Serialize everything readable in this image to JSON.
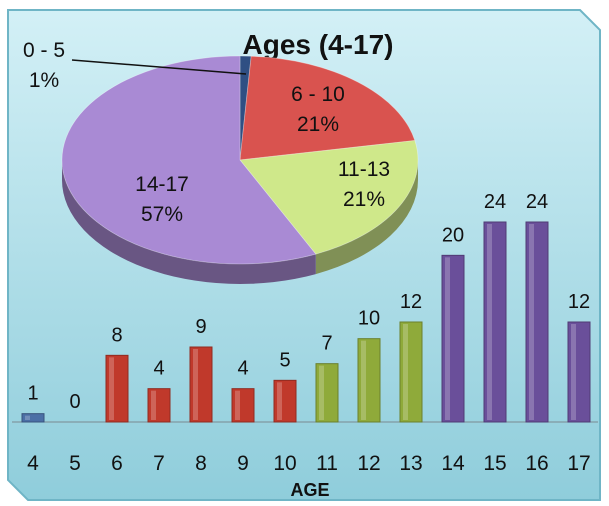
{
  "chart_data": [
    {
      "type": "pie",
      "title": "Ages (4-17)",
      "slices": [
        {
          "label": "0 - 5",
          "percent": "1%",
          "value": 1,
          "color": "#2f4f83"
        },
        {
          "label": "6 - 10",
          "percent": "21%",
          "value": 21,
          "color": "#d9534f"
        },
        {
          "label": "11-13",
          "percent": "21%",
          "value": 21,
          "color": "#cfe88a"
        },
        {
          "label": "14-17",
          "percent": "57%",
          "value": 57,
          "color": "#a98ad4"
        }
      ]
    },
    {
      "type": "bar",
      "xlabel": "AGE",
      "categories": [
        "4",
        "5",
        "6",
        "7",
        "8",
        "9",
        "10",
        "11",
        "12",
        "13",
        "14",
        "15",
        "16",
        "17"
      ],
      "values": [
        1,
        0,
        8,
        4,
        9,
        4,
        5,
        7,
        10,
        12,
        20,
        24,
        24,
        12
      ],
      "colors": [
        "#4b6fa6",
        "#4b6fa6",
        "#c0392b",
        "#c0392b",
        "#c0392b",
        "#c0392b",
        "#c0392b",
        "#8faa3a",
        "#8faa3a",
        "#8faa3a",
        "#6a4f9a",
        "#6a4f9a",
        "#6a4f9a",
        "#6a4f9a"
      ],
      "ylim": [
        0,
        24
      ]
    }
  ],
  "colors": {
    "background_top": "#cfeef5",
    "background_bottom": "#8ccbd9",
    "frame_border": "#6fb5c6"
  }
}
